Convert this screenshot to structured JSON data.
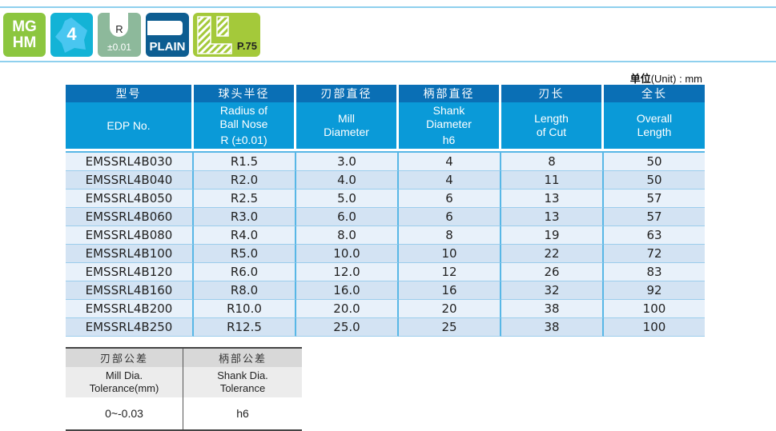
{
  "icons": {
    "material": [
      "MG",
      "HM"
    ],
    "flutes": "4",
    "radius": {
      "label": "R",
      "tol": "±0.01"
    },
    "shank": "PLAIN",
    "page": "P.75"
  },
  "unit": {
    "prefix": "单位",
    "text": "(Unit) : mm"
  },
  "table": {
    "headers_zh": [
      "型号",
      "球头半径",
      "刃部直径",
      "柄部直径",
      "刃长",
      "全长"
    ],
    "headers_en": [
      [
        "EDP No."
      ],
      [
        "Radius of",
        "Ball Nose",
        "R (±0.01)"
      ],
      [
        "Mill",
        "Diameter"
      ],
      [
        "Shank",
        "Diameter",
        "h6"
      ],
      [
        "Length",
        "of Cut"
      ],
      [
        "Overall",
        "Length"
      ]
    ],
    "rows": [
      [
        "EMSSRL4B030",
        "R1.5",
        "3.0",
        "4",
        "8",
        "50"
      ],
      [
        "EMSSRL4B040",
        "R2.0",
        "4.0",
        "4",
        "11",
        "50"
      ],
      [
        "EMSSRL4B050",
        "R2.5",
        "5.0",
        "6",
        "13",
        "57"
      ],
      [
        "EMSSRL4B060",
        "R3.0",
        "6.0",
        "6",
        "13",
        "57"
      ],
      [
        "EMSSRL4B080",
        "R4.0",
        "8.0",
        "8",
        "19",
        "63"
      ],
      [
        "EMSSRL4B100",
        "R5.0",
        "10.0",
        "10",
        "22",
        "72"
      ],
      [
        "EMSSRL4B120",
        "R6.0",
        "12.0",
        "12",
        "26",
        "83"
      ],
      [
        "EMSSRL4B160",
        "R8.0",
        "16.0",
        "16",
        "32",
        "92"
      ],
      [
        "EMSSRL4B200",
        "R10.0",
        "20.0",
        "20",
        "38",
        "100"
      ],
      [
        "EMSSRL4B250",
        "R12.5",
        "25.0",
        "25",
        "38",
        "100"
      ]
    ]
  },
  "tolerance": {
    "headers_zh": [
      "刃部公差",
      "柄部公差"
    ],
    "headers_en": [
      [
        "Mill  Dia.",
        "Tolerance(mm)"
      ],
      [
        "Shank  Dia.",
        "Tolerance"
      ]
    ],
    "values": [
      "0~-0.03",
      "h6"
    ]
  }
}
